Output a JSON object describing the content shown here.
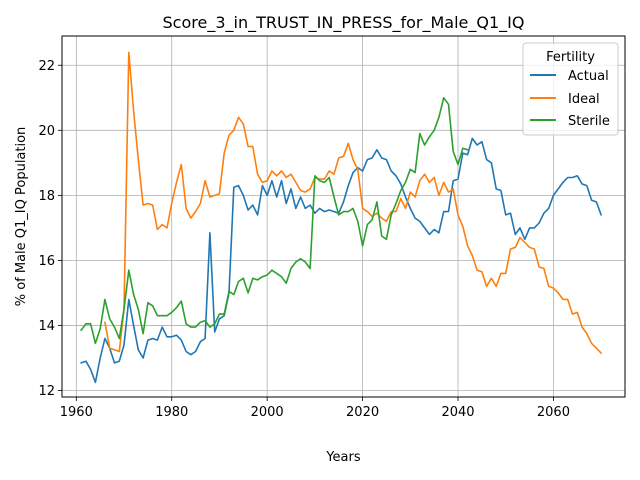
{
  "chart_data": {
    "type": "line",
    "title": "Score_3_in_TRUST_IN_PRESS_for_Male_Q1_IQ",
    "xlabel": "Years",
    "ylabel": "% of Male Q1_IQ Population",
    "xlim": [
      1957,
      2075
    ],
    "ylim": [
      11.8,
      22.9
    ],
    "xticks": [
      "1960",
      "1980",
      "2000",
      "2020",
      "2040",
      "2060"
    ],
    "yticks": [
      "12",
      "14",
      "16",
      "18",
      "20",
      "22"
    ],
    "grid": true,
    "legend": {
      "title": "Fertility",
      "placement": "top-right"
    },
    "series": [
      {
        "name": "Actual",
        "color": "#1f77b4",
        "x": [
          1961,
          1962,
          1963,
          1964,
          1965,
          1966,
          1967,
          1968,
          1969,
          1970,
          1971,
          1972,
          1973,
          1974,
          1975,
          1976,
          1977,
          1978,
          1979,
          1980,
          1981,
          1982,
          1983,
          1984,
          1985,
          1986,
          1987,
          1988,
          1989,
          1990,
          1991,
          1992,
          1993,
          1994,
          1995,
          1996,
          1997,
          1998,
          1999,
          2000,
          2001,
          2002,
          2003,
          2004,
          2005,
          2006,
          2007,
          2008,
          2009,
          2010,
          2011,
          2012,
          2013,
          2014,
          2015,
          2016,
          2017,
          2018,
          2019,
          2020,
          2021,
          2022,
          2023,
          2024,
          2025,
          2026,
          2027,
          2028,
          2029,
          2030,
          2031,
          2032,
          2033,
          2034,
          2035,
          2036,
          2037,
          2038,
          2039,
          2040,
          2041,
          2042,
          2043,
          2044,
          2045,
          2046,
          2047,
          2048,
          2049,
          2050,
          2051,
          2052,
          2053,
          2054,
          2055,
          2056,
          2057,
          2058,
          2059,
          2060,
          2061,
          2062,
          2063,
          2064,
          2065,
          2066,
          2067,
          2068,
          2069,
          2070
        ],
        "y": [
          12.85,
          12.9,
          12.65,
          12.25,
          13.0,
          13.6,
          13.3,
          12.85,
          12.9,
          13.4,
          14.8,
          14.0,
          13.25,
          13.0,
          13.55,
          13.6,
          13.55,
          13.95,
          13.65,
          13.65,
          13.7,
          13.55,
          13.2,
          13.1,
          13.2,
          13.5,
          13.6,
          16.85,
          13.8,
          14.2,
          14.3,
          15.0,
          18.25,
          18.3,
          18.0,
          17.55,
          17.7,
          17.4,
          18.3,
          18.0,
          18.45,
          17.95,
          18.45,
          17.75,
          18.2,
          17.6,
          17.95,
          17.6,
          17.7,
          17.45,
          17.6,
          17.5,
          17.55,
          17.5,
          17.45,
          17.8,
          18.3,
          18.7,
          18.85,
          18.75,
          19.1,
          19.15,
          19.4,
          19.15,
          19.1,
          18.75,
          18.6,
          18.35,
          17.95,
          17.6,
          17.3,
          17.2,
          17.0,
          16.8,
          16.95,
          16.85,
          17.5,
          17.5,
          18.45,
          18.5,
          19.3,
          19.25,
          19.75,
          19.55,
          19.65,
          19.1,
          19.0,
          18.2,
          18.15,
          17.4,
          17.45,
          16.8,
          17.0,
          16.65,
          17.0,
          17.0,
          17.15,
          17.45,
          17.6,
          18.0,
          18.2,
          18.4,
          18.55,
          18.55,
          18.6,
          18.35,
          18.3,
          17.85,
          17.8,
          17.4
        ]
      },
      {
        "name": "Ideal",
        "color": "#ff7f0e",
        "x": [
          1966,
          1967,
          1968,
          1969,
          1970,
          1971,
          1972,
          1973,
          1974,
          1975,
          1976,
          1977,
          1978,
          1979,
          1980,
          1981,
          1982,
          1983,
          1984,
          1985,
          1986,
          1987,
          1988,
          1989,
          1990,
          1991,
          1992,
          1993,
          1994,
          1995,
          1996,
          1997,
          1998,
          1999,
          2000,
          2001,
          2002,
          2003,
          2004,
          2005,
          2006,
          2007,
          2008,
          2009,
          2010,
          2011,
          2012,
          2013,
          2014,
          2015,
          2016,
          2017,
          2018,
          2019,
          2020,
          2021,
          2022,
          2023,
          2024,
          2025,
          2026,
          2027,
          2028,
          2029,
          2030,
          2031,
          2032,
          2033,
          2034,
          2035,
          2036,
          2037,
          2038,
          2039,
          2040,
          2041,
          2042,
          2043,
          2044,
          2045,
          2046,
          2047,
          2048,
          2049,
          2050,
          2051,
          2052,
          2053,
          2054,
          2055,
          2056,
          2057,
          2058,
          2059,
          2060,
          2061,
          2062,
          2063,
          2064,
          2065,
          2066,
          2067,
          2068,
          2069,
          2070
        ],
        "y": [
          14.1,
          13.3,
          13.25,
          13.2,
          14.5,
          22.4,
          20.6,
          19.1,
          17.7,
          17.75,
          17.7,
          16.95,
          17.1,
          17.0,
          17.75,
          18.4,
          18.95,
          17.6,
          17.3,
          17.5,
          17.75,
          18.45,
          17.95,
          18.0,
          18.05,
          19.3,
          19.85,
          20.0,
          20.4,
          20.2,
          19.5,
          19.5,
          18.65,
          18.4,
          18.45,
          18.75,
          18.6,
          18.75,
          18.55,
          18.65,
          18.4,
          18.15,
          18.1,
          18.2,
          18.55,
          18.5,
          18.5,
          18.75,
          18.65,
          19.15,
          19.2,
          19.6,
          19.1,
          18.8,
          17.6,
          17.5,
          17.35,
          17.45,
          17.3,
          17.2,
          17.5,
          17.5,
          17.9,
          17.6,
          18.1,
          17.95,
          18.45,
          18.65,
          18.4,
          18.55,
          18.0,
          18.4,
          18.1,
          18.2,
          17.4,
          17.05,
          16.45,
          16.15,
          15.7,
          15.65,
          15.2,
          15.45,
          15.2,
          15.6,
          15.6,
          16.35,
          16.4,
          16.7,
          16.55,
          16.4,
          16.35,
          15.8,
          15.75,
          15.2,
          15.15,
          15.0,
          14.8,
          14.8,
          14.35,
          14.4,
          13.95,
          13.75,
          13.45,
          13.3,
          13.15
        ]
      },
      {
        "name": "Sterile",
        "color": "#2ca02c",
        "x": [
          1961,
          1962,
          1963,
          1964,
          1965,
          1966,
          1967,
          1968,
          1969,
          1970,
          1971,
          1972,
          1973,
          1974,
          1975,
          1976,
          1977,
          1978,
          1979,
          1980,
          1981,
          1982,
          1983,
          1984,
          1985,
          1986,
          1987,
          1988,
          1989,
          1990,
          1991,
          1992,
          1993,
          1994,
          1995,
          1996,
          1997,
          1998,
          1999,
          2000,
          2001,
          2002,
          2003,
          2004,
          2005,
          2006,
          2007,
          2008,
          2009,
          2010,
          2011,
          2012,
          2013,
          2014,
          2015,
          2016,
          2017,
          2018,
          2019,
          2020,
          2021,
          2022,
          2023,
          2024,
          2025,
          2026,
          2027,
          2028,
          2029,
          2030,
          2031,
          2032,
          2033,
          2034,
          2035,
          2036,
          2037,
          2038,
          2039,
          2040,
          2041,
          2042
        ],
        "y": [
          13.85,
          14.05,
          14.05,
          13.45,
          13.9,
          14.8,
          14.2,
          13.95,
          13.6,
          14.5,
          15.7,
          14.95,
          14.5,
          13.75,
          14.7,
          14.6,
          14.3,
          14.3,
          14.3,
          14.4,
          14.55,
          14.75,
          14.05,
          13.95,
          13.95,
          14.1,
          14.15,
          13.95,
          14.05,
          14.35,
          14.35,
          15.05,
          14.95,
          15.35,
          15.45,
          15.0,
          15.45,
          15.4,
          15.5,
          15.55,
          15.7,
          15.6,
          15.5,
          15.3,
          15.75,
          15.95,
          16.05,
          15.95,
          15.75,
          18.6,
          18.45,
          18.4,
          18.55,
          17.95,
          17.4,
          17.5,
          17.5,
          17.6,
          17.2,
          16.45,
          17.1,
          17.25,
          17.8,
          16.75,
          16.65,
          17.4,
          17.75,
          18.15,
          18.4,
          18.8,
          18.7,
          19.9,
          19.55,
          19.8,
          20.0,
          20.4,
          21.0,
          20.8,
          19.35,
          18.95,
          19.45,
          19.4
        ]
      }
    ]
  }
}
